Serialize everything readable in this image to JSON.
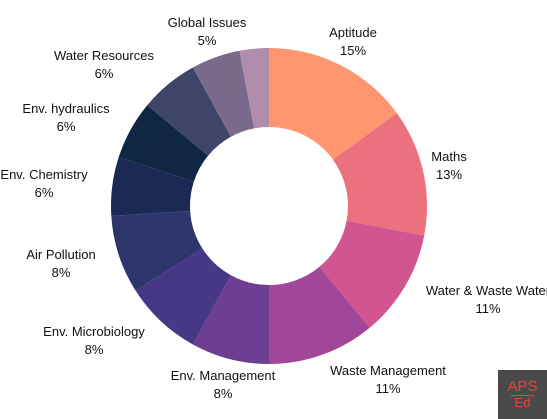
{
  "chart_data": {
    "type": "pie",
    "donut": true,
    "title": "",
    "legend": "none",
    "slices": [
      {
        "label": "Aptitude",
        "value": 15,
        "display": "15%",
        "color": "#ff9670"
      },
      {
        "label": "Maths",
        "value": 13,
        "display": "13%",
        "color": "#ec717f"
      },
      {
        "label": "Water & Waste Water",
        "value": 11,
        "display": "11%",
        "color": "#d15590"
      },
      {
        "label": "Waste Management",
        "value": 11,
        "display": "11%",
        "color": "#a2469a"
      },
      {
        "label": "Env. Management",
        "value": 8,
        "display": "8%",
        "color": "#6c3f94"
      },
      {
        "label": "Env. Microbiology",
        "value": 8,
        "display": "8%",
        "color": "#463885"
      },
      {
        "label": "Air Pollution",
        "value": 8,
        "display": "8%",
        "color": "#2e356d"
      },
      {
        "label": "Env. Chemistry",
        "value": 6,
        "display": "6%",
        "color": "#1b2a55"
      },
      {
        "label": "Env. hydraulics",
        "value": 6,
        "display": "6%",
        "color": "#0f2744"
      },
      {
        "label": "Water Resources",
        "value": 6,
        "display": "6%",
        "color": "#3f4469"
      },
      {
        "label": "Global Issues",
        "value": 5,
        "display": "5%",
        "color": "#796a8c"
      },
      {
        "label": "",
        "value": 3,
        "display": "",
        "color": "#b08dab"
      }
    ]
  },
  "logo": {
    "line1": "APS",
    "line2": "Ed"
  }
}
